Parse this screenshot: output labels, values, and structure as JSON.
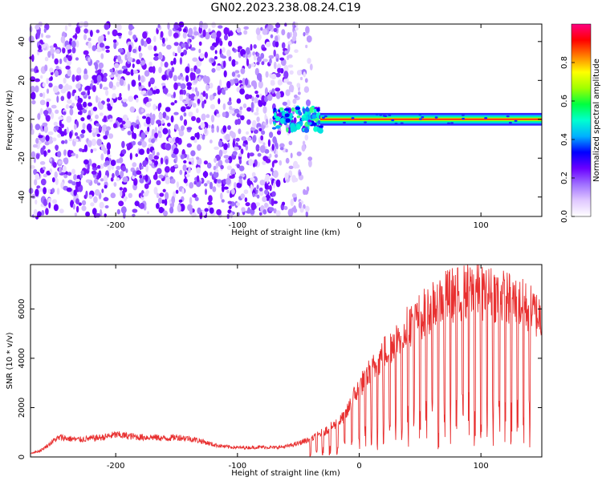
{
  "title": "GN02.2023.238.08.24.C19",
  "chart_data": [
    {
      "type": "heatmap",
      "xlabel": "Height of straight line (km)",
      "ylabel": "Frequency (Hz)",
      "xlim": [
        -270,
        150
      ],
      "ylim": [
        -50,
        49
      ],
      "xticks": [
        -200,
        -100,
        0,
        100
      ],
      "yticks": [
        -40,
        -20,
        0,
        20,
        40
      ],
      "grid": false,
      "description_of_pattern": {
        "noise_region_x": [
          -270,
          -35
        ],
        "dense_noise_x": [
          -270,
          -60
        ],
        "signal_onset_x": -70,
        "signal_band_center_hz": 0,
        "signal_band_halfwidth_hz": 2.5
      },
      "colorbar": {
        "label": "Normalized spectral amplitude",
        "range": [
          0.0,
          1.0
        ],
        "ticks": [
          0.0,
          0.2,
          0.4,
          0.6,
          0.8
        ],
        "placement": "right",
        "colors": [
          "#ffffff",
          "#e0c8ff",
          "#a070ff",
          "#6a00ff",
          "#0000ff",
          "#00b0ff",
          "#00ffd0",
          "#00ff40",
          "#a0ff00",
          "#ffff00",
          "#ff8000",
          "#ff0000",
          "#ff0080"
        ]
      }
    },
    {
      "type": "line",
      "xlabel": "Height of straight line (km)",
      "ylabel": "SNR (10 * v/v)",
      "xlim": [
        -270,
        150
      ],
      "ylim": [
        0,
        7800
      ],
      "xticks": [
        -200,
        -100,
        0,
        100
      ],
      "yticks": [
        0,
        2000,
        4000,
        6000
      ],
      "grid": false,
      "color": "#e83030",
      "x": [
        -270,
        -262,
        -255,
        -250,
        -245,
        -240,
        -230,
        -220,
        -210,
        -200,
        -190,
        -180,
        -170,
        -160,
        -150,
        -140,
        -130,
        -120,
        -110,
        -100,
        -90,
        -80,
        -70,
        -60,
        -50,
        -45,
        -40,
        -35,
        -30,
        -25,
        -20,
        -15,
        -10,
        -5,
        0,
        5,
        10,
        15,
        20,
        25,
        30,
        35,
        40,
        45,
        50,
        55,
        60,
        65,
        70,
        75,
        80,
        85,
        90,
        95,
        100,
        105,
        110,
        115,
        120,
        125,
        130,
        135,
        140,
        145,
        150
      ],
      "y": [
        150,
        250,
        500,
        700,
        800,
        750,
        700,
        750,
        800,
        900,
        850,
        800,
        800,
        750,
        800,
        750,
        650,
        500,
        420,
        380,
        380,
        400,
        380,
        420,
        550,
        650,
        700,
        850,
        1000,
        1150,
        1300,
        1500,
        1800,
        2400,
        2800,
        3200,
        3500,
        3800,
        4200,
        4500,
        4800,
        5100,
        5300,
        5500,
        5700,
        5900,
        6100,
        6300,
        6450,
        6550,
        6600,
        6650,
        6700,
        6750,
        6700,
        6650,
        6600,
        6550,
        6450,
        6350,
        6250,
        6150,
        6000,
        5800,
        5700
      ],
      "noise_amplitude_fraction": 0.35,
      "notch_x": [
        -40,
        -35,
        -30,
        -24,
        -18,
        -12,
        -6,
        0,
        5,
        10,
        15,
        20,
        25,
        30,
        35,
        40,
        45,
        50,
        55,
        60,
        65,
        70,
        75,
        80,
        85,
        90,
        95,
        100,
        105,
        110,
        115,
        120,
        125,
        130,
        135,
        140
      ]
    }
  ]
}
